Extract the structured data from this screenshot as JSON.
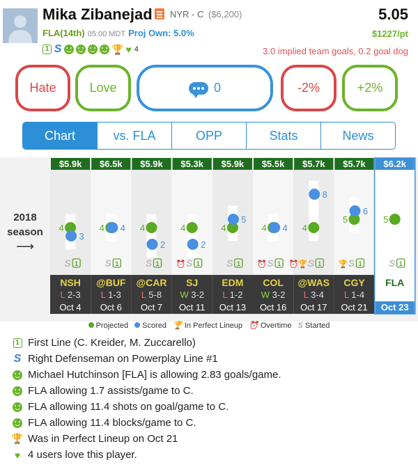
{
  "player": {
    "name": "Mika Zibanejad",
    "team_pos": "NYR - C",
    "salary": "($6,200)",
    "score": "5.05",
    "opponent": "FLA(14th)",
    "time": "05:00 MDT",
    "proj_own": "Proj Own: 5.0%",
    "price_per_pt": "$1227/pt",
    "implied": "3.0 implied team goals, 0.2 goal dog",
    "love_count": "4",
    "first_line_glyph": "1",
    "powerplay_glyph": "S"
  },
  "buttons": {
    "hate": "Hate",
    "love": "Love",
    "comments": "0",
    "minus": "-2%",
    "plus": "+2%"
  },
  "tabs": [
    "Chart",
    "vs. FLA",
    "OPP",
    "Stats",
    "News"
  ],
  "season_label": {
    "year": "2018",
    "word": "season",
    "arrow": "⟶"
  },
  "chart_data": {
    "type": "scatter",
    "title": "",
    "xlabel": "",
    "ylabel": "",
    "ylim": [
      0,
      10
    ],
    "series": [
      {
        "name": "Projected",
        "color": "#5aaa22",
        "values": [
          4,
          4,
          4,
          4,
          4,
          4,
          4,
          5,
          5
        ]
      },
      {
        "name": "Scored",
        "color": "#4a90e2",
        "values": [
          3,
          4,
          2,
          2,
          5,
          4,
          8,
          6,
          null
        ]
      }
    ],
    "games": [
      {
        "salary": "$5.9k",
        "opp": "NSH",
        "result": "L",
        "score": "2-3",
        "date": "Oct 4",
        "overtime": false,
        "perfect": false
      },
      {
        "salary": "$6.5k",
        "opp": "@BUF",
        "result": "L",
        "score": "1-3",
        "date": "Oct 6",
        "overtime": false,
        "perfect": false
      },
      {
        "salary": "$5.9k",
        "opp": "@CAR",
        "result": "L",
        "score": "5-8",
        "date": "Oct 7",
        "overtime": false,
        "perfect": false
      },
      {
        "salary": "$5.3k",
        "opp": "SJ",
        "result": "W",
        "score": "3-2",
        "date": "Oct 11",
        "overtime": true,
        "perfect": false
      },
      {
        "salary": "$5.9k",
        "opp": "EDM",
        "result": "L",
        "score": "1-2",
        "date": "Oct 13",
        "overtime": false,
        "perfect": false
      },
      {
        "salary": "$5.5k",
        "opp": "COL",
        "result": "W",
        "score": "3-2",
        "date": "Oct 16",
        "overtime": true,
        "perfect": false
      },
      {
        "salary": "$5.7k",
        "opp": "@WAS",
        "result": "L",
        "score": "3-4",
        "date": "Oct 17",
        "overtime": true,
        "perfect": true
      },
      {
        "salary": "$5.7k",
        "opp": "CGY",
        "result": "L",
        "score": "1-4",
        "date": "Oct 21",
        "overtime": false,
        "perfect": true
      },
      {
        "salary": "$6.2k",
        "opp": "FLA",
        "result": "",
        "score": "",
        "date": "Oct 23",
        "overtime": false,
        "perfect": false,
        "upcoming": true
      }
    ]
  },
  "legend": {
    "projected": "Projected",
    "scored": "Scored",
    "perfect": "In Perfect Lineup",
    "overtime": "Overtime",
    "started": "Started"
  },
  "notes": [
    {
      "icon": "first-line-icon",
      "text": "First Line (C. Kreider, M. Zuccarello)"
    },
    {
      "icon": "powerplay-icon",
      "text": "Right Defenseman on Powerplay Line #1"
    },
    {
      "icon": "smile-icon",
      "text": "Michael Hutchinson [FLA] is allowing 2.83 goals/game."
    },
    {
      "icon": "smile-icon",
      "text": "FLA allowing 1.7 assists/game to C."
    },
    {
      "icon": "smile-icon",
      "text": "FLA allowing 11.4 shots on goal/game to C."
    },
    {
      "icon": "smile-icon",
      "text": "FLA allowing 11.4 blocks/game to C."
    },
    {
      "icon": "trophy-icon",
      "text": "Was in Perfect Lineup on Oct 21"
    },
    {
      "icon": "heart-icon",
      "text": "4 users love this player."
    }
  ]
}
